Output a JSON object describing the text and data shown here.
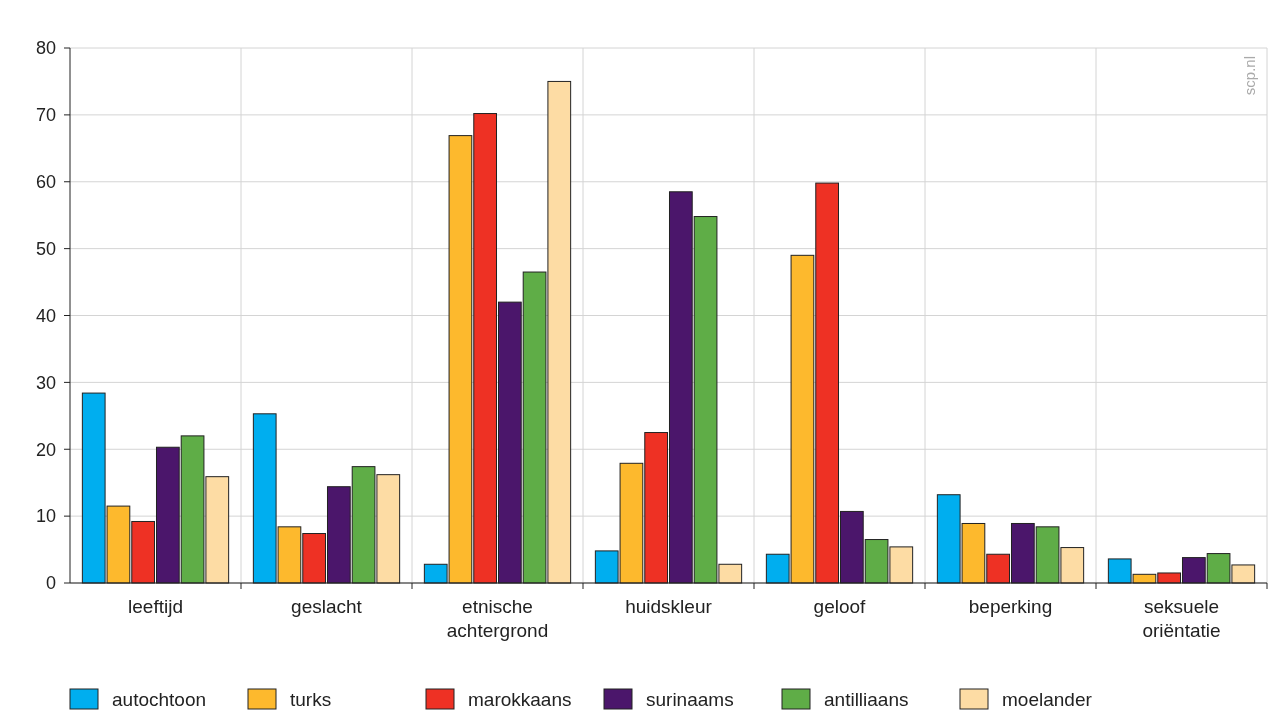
{
  "chart_data": {
    "type": "bar",
    "categories": [
      "leeftijd",
      "geslacht",
      "etnische achtergrond",
      "huidskleur",
      "geloof",
      "beperking",
      "seksuele oriëntatie"
    ],
    "series": [
      {
        "name": "autochtoon",
        "color": "#00aeef",
        "values": [
          28.4,
          25.3,
          2.8,
          4.8,
          4.3,
          13.2,
          3.6
        ]
      },
      {
        "name": "turks",
        "color": "#fdb92d",
        "values": [
          11.5,
          8.4,
          66.9,
          17.9,
          49,
          8.9,
          1.3
        ]
      },
      {
        "name": "marokkaans",
        "color": "#ee3124",
        "values": [
          9.2,
          7.4,
          70.2,
          22.5,
          59.8,
          4.3,
          1.5
        ]
      },
      {
        "name": "surinaams",
        "color": "#4b166b",
        "values": [
          20.3,
          14.4,
          42,
          58.5,
          10.7,
          8.9,
          3.8
        ]
      },
      {
        "name": "antilliaans",
        "color": "#5fad47",
        "values": [
          22,
          17.4,
          46.5,
          54.8,
          6.5,
          8.4,
          4.4
        ]
      },
      {
        "name": "moelander",
        "color": "#fddca4",
        "values": [
          15.9,
          16.2,
          75,
          2.8,
          5.4,
          5.3,
          2.7
        ]
      }
    ],
    "ylim": [
      0,
      80
    ],
    "yticks": [
      0,
      10,
      20,
      30,
      40,
      50,
      60,
      70,
      80
    ],
    "grid": true,
    "legend": "bottom",
    "annotations": [
      "scp.nl"
    ]
  }
}
